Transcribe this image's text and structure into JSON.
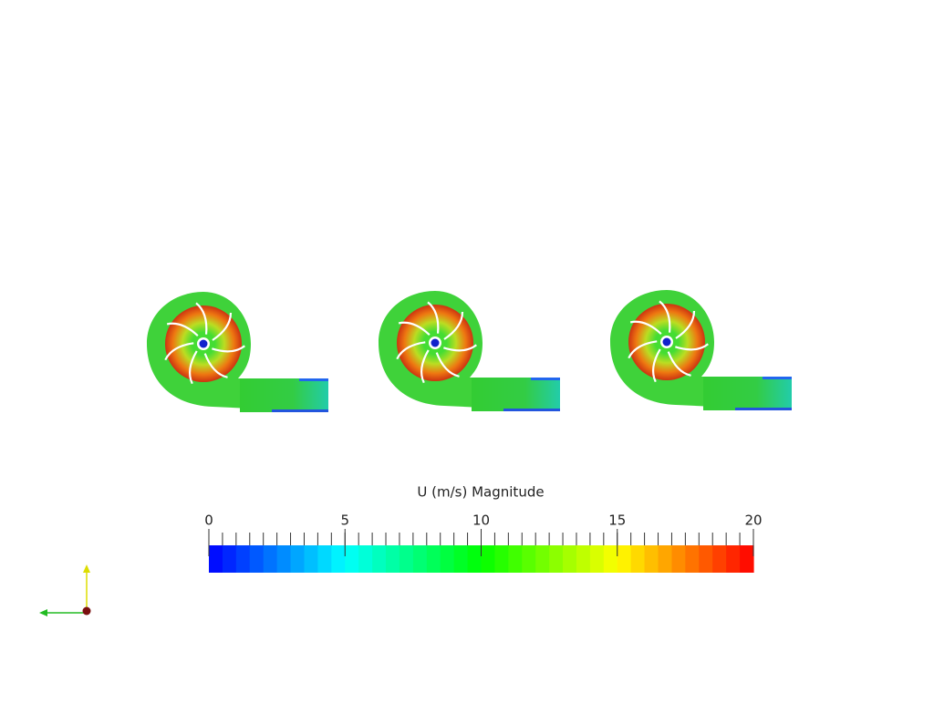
{
  "colorbar": {
    "title": "U (m/s) Magnitude",
    "range": [
      0,
      20
    ],
    "ticks": [
      0,
      5,
      10,
      15,
      20
    ],
    "minor_ticks": [
      0,
      0.5,
      1,
      1.5,
      2,
      2.5,
      3,
      3.5,
      4,
      4.5,
      5,
      5.5,
      6,
      6.5,
      7,
      7.5,
      8,
      8.5,
      9,
      9.5,
      10,
      10.5,
      11,
      11.5,
      12,
      12.5,
      13,
      13.5,
      14,
      14.5,
      15,
      15.5,
      16,
      16.5,
      17,
      17.5,
      18,
      18.5,
      19,
      19.5,
      20
    ],
    "colors": [
      "#0000ff",
      "#00ffff",
      "#00ff00",
      "#ffff00",
      "#ff0000"
    ]
  }
}
